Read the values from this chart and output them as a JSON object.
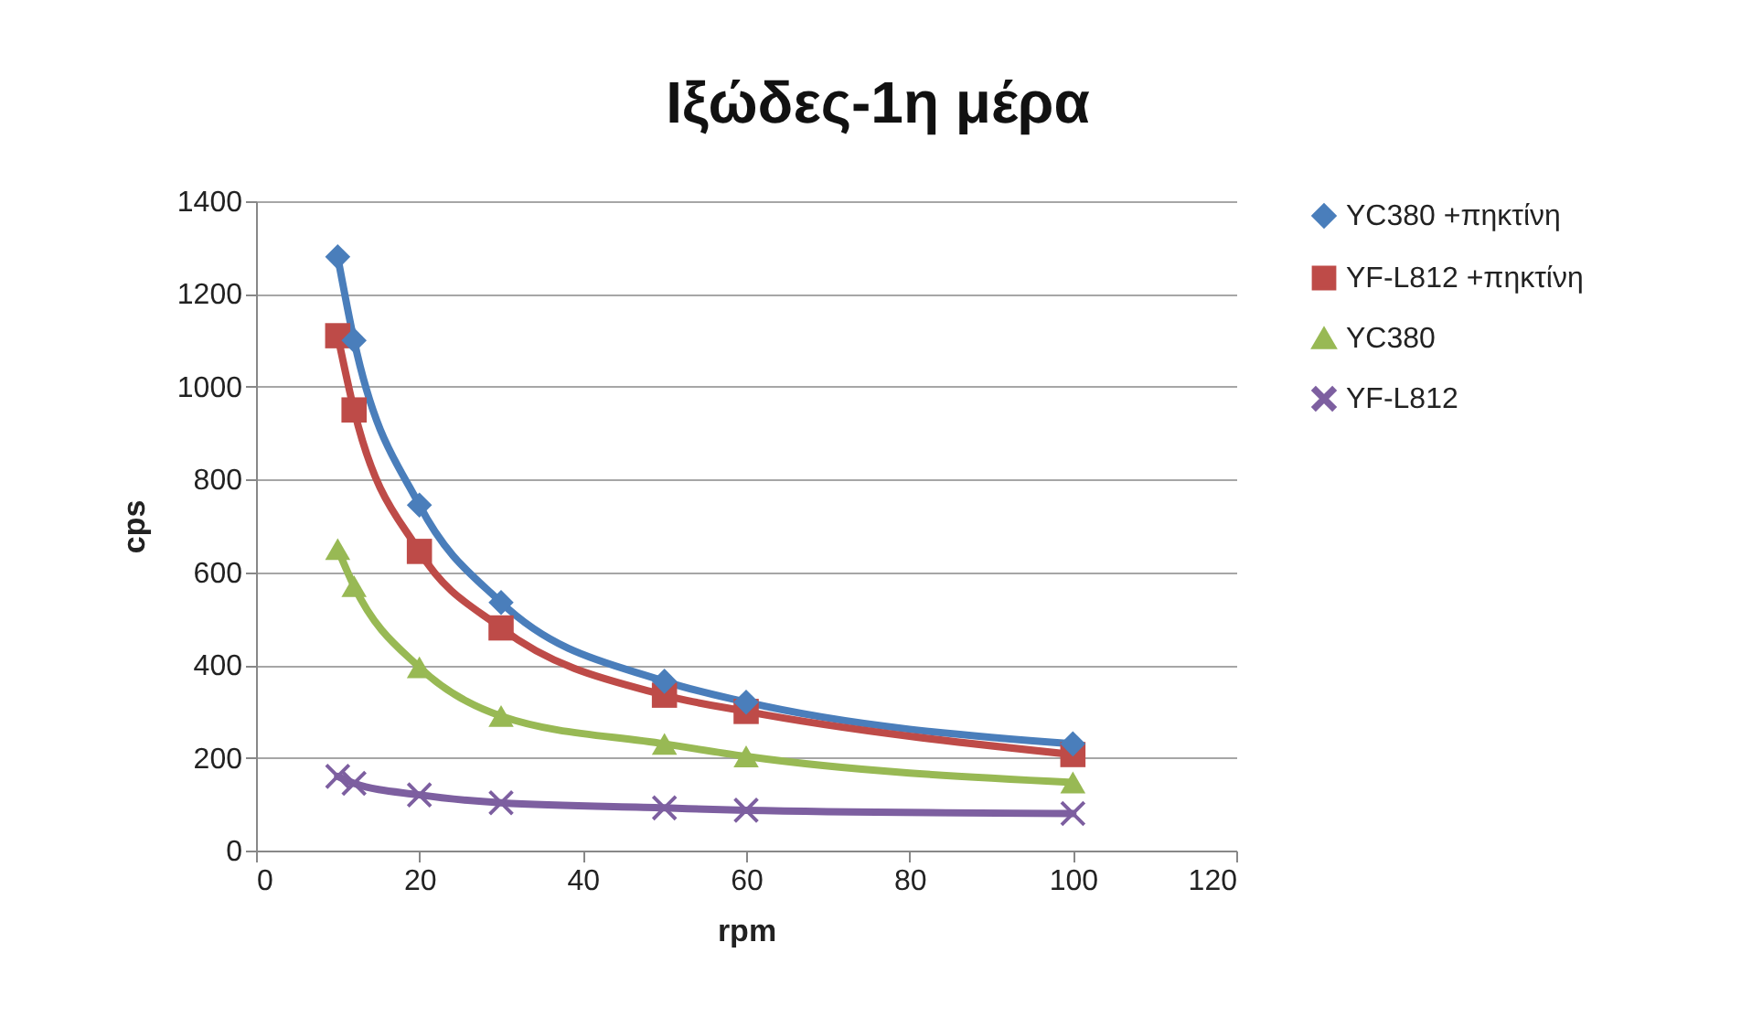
{
  "chart_data": {
    "type": "line",
    "title": "Ιξώδες-1η μέρα",
    "xlabel": "rpm",
    "ylabel": "cps",
    "x": [
      10,
      12,
      20,
      30,
      50,
      60,
      100
    ],
    "xlim": [
      0,
      120
    ],
    "xticks": [
      0,
      20,
      40,
      60,
      80,
      100,
      120
    ],
    "ylim": [
      0,
      1400
    ],
    "yticks": [
      0,
      200,
      400,
      600,
      800,
      1000,
      1200,
      1400
    ],
    "grid": "y",
    "legend": "right",
    "series": [
      {
        "name": "YC380 +πηκτίνη",
        "color": "#4a7ebb",
        "marker": "diamond",
        "values": [
          1280,
          1100,
          745,
          535,
          365,
          320,
          230
        ]
      },
      {
        "name": "YF-L812 +πηκτίνη",
        "color": "#be4b48",
        "marker": "square",
        "values": [
          1110,
          950,
          645,
          480,
          335,
          300,
          207
        ]
      },
      {
        "name": "YC380",
        "color": "#98b954",
        "marker": "triangle",
        "values": [
          650,
          570,
          395,
          290,
          230,
          203,
          147
        ]
      },
      {
        "name": "YF-L812",
        "color": "#7d5fa0",
        "marker": "cross",
        "values": [
          160,
          145,
          120,
          103,
          92,
          87,
          80
        ]
      }
    ]
  }
}
